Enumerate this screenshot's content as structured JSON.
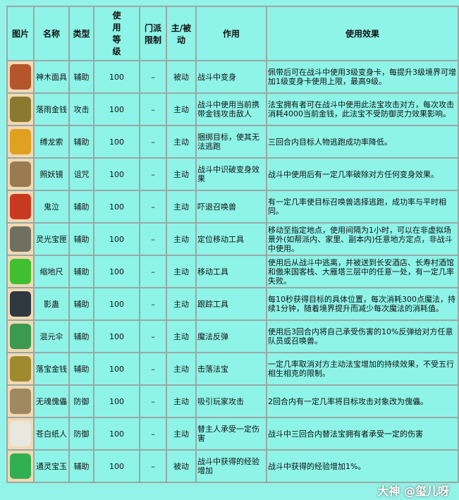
{
  "headers": [
    "图片",
    "名称",
    "类型",
    "使用等级",
    "门派限制",
    "主/被动",
    "作用",
    "使用效果"
  ],
  "header_level_lines": [
    "使",
    "用",
    "等",
    "级"
  ],
  "rows": [
    {
      "icon": "demon-mask-icon",
      "color": "#b5552c",
      "name": "神木面具",
      "type": "辅助",
      "level": "100",
      "sect": "–",
      "mode": "被动",
      "use": "战斗中变身",
      "effect": "佩带后可在战斗中使用3级变身卡，每提升3级境界可增加1级变身卡使用上限，最高9级。"
    },
    {
      "icon": "coin-necklace-icon",
      "color": "#8a7a30",
      "name": "落雨金钱",
      "type": "攻击",
      "level": "100",
      "sect": "–",
      "mode": "主动",
      "use": "战斗中使用当前携带金钱攻击敌人",
      "effect": "法宝拥有者可在战斗中使用此法宝攻击对方，每次攻击消耗4000当前金钱，此法宝不受防御灵力效果影响。"
    },
    {
      "icon": "rope-icon",
      "color": "#e0a020",
      "name": "缚龙索",
      "type": "辅助",
      "level": "100",
      "sect": "–",
      "mode": "主动",
      "use": "捆绑目标，使其无法逃跑",
      "effect": "三回合内目标人物逃跑成功率降低。"
    },
    {
      "icon": "mirror-icon",
      "color": "#9a7a50",
      "name": "照妖镜",
      "type": "诅咒",
      "level": "100",
      "sect": "–",
      "mode": "主动",
      "use": "战斗中识破变身效果",
      "effect": "战斗中使用后有一定几率破除对方任何变身效果。"
    },
    {
      "icon": "bell-icon",
      "color": "#c83a20",
      "name": "鬼泣",
      "type": "辅助",
      "level": "100",
      "sect": "–",
      "mode": "主动",
      "use": "吓退召唤兽",
      "effect": "有一定几率使目标召唤兽选择逃跑，成功率与平时相同。"
    },
    {
      "icon": "box-icon",
      "color": "#707060",
      "name": "灵光宝匣",
      "type": "辅助",
      "level": "100",
      "sect": "–",
      "mode": "主动",
      "use": "定位移动工具",
      "effect": "移动至指定地点，使用间隔为1小时，可以在非虚拟场景外(如帮派内、家里、副本内)任意地方定点，非战斗中使用。"
    },
    {
      "icon": "ruler-icon",
      "color": "#40c030",
      "name": "缩地尺",
      "type": "辅助",
      "level": "100",
      "sect": "–",
      "mode": "主动",
      "use": "移动工具",
      "effect": "使用后从战斗中逃离，并被送到长安酒店、长寿村酒馆和傲来国客栈、大雁塔三层中的任意一处，有一定几率失败。"
    },
    {
      "icon": "chest-icon",
      "color": "#303840",
      "name": "影蛊",
      "type": "辅助",
      "level": "100",
      "sect": "–",
      "mode": "主动",
      "use": "跟踪工具",
      "effect": "每10秒获得目标的具体位置，每次消耗300点魔法，持续1分钟，随着境界提升而减少每次魔法的消耗值。"
    },
    {
      "icon": "umbrella-icon",
      "color": "#3a9a50",
      "name": "混元伞",
      "type": "辅助",
      "level": "100",
      "sect": "–",
      "mode": "主动",
      "use": "魔法反弹",
      "effect": "使用后3回合内将自己承受伤害的10%反弹给对方任意队员或召唤兽。"
    },
    {
      "icon": "coin-pouch-icon",
      "color": "#a08a30",
      "name": "落宝金钱",
      "type": "辅助",
      "level": "100",
      "sect": "–",
      "mode": "主动",
      "use": "击落法宝",
      "effect": "一定几率取消对方主动法宝增加的持续效果，不受五行相生相克的限制。"
    },
    {
      "icon": "puppet-icon",
      "color": "#a08860",
      "name": "无魂傀儡",
      "type": "防御",
      "level": "100",
      "sect": "–",
      "mode": "主动",
      "use": "吸引玩家攻击",
      "effect": "2回合内有一定几率将目标攻击对象改为傀儡。"
    },
    {
      "icon": "paper-doll-icon",
      "color": "#e8e8e0",
      "name": "苍白纸人",
      "type": "防御",
      "level": "100",
      "sect": "–",
      "mode": "主动",
      "use": "替主人承受一定伤害",
      "effect": "战斗中三回合内替法宝拥有者承受一定的伤害"
    },
    {
      "icon": "jade-icon",
      "color": "#30b050",
      "name": "通灵宝玉",
      "type": "辅助",
      "level": "100",
      "sect": "–",
      "mode": "被动",
      "use": "战斗中获得的经验增加",
      "effect": "战斗中获得的经验增加1%。"
    }
  ],
  "watermark": "大神 @玺儿呀"
}
